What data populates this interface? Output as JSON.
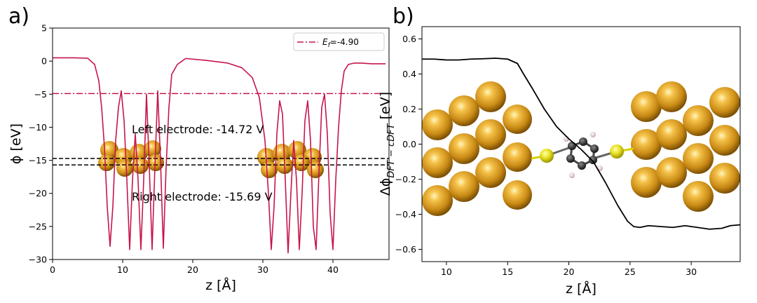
{
  "chart_data": [
    {
      "panel": "a)",
      "type": "line",
      "xlabel": "z [Å]",
      "ylabel": "ϕ [eV]",
      "xlim": [
        0,
        48
      ],
      "ylim": [
        -30,
        5
      ],
      "xticks": [
        "0",
        "10",
        "20",
        "30",
        "40"
      ],
      "yticks": [
        "5",
        "0",
        "−5",
        "−10",
        "−15",
        "−20",
        "−25",
        "−30"
      ],
      "legend": {
        "label": "E_f=-4.90",
        "prefix": "E",
        "sub": "f",
        "suffix": "=-4.90",
        "location": "top-right"
      },
      "fermi_level": -4.9,
      "hlines": [
        -14.72,
        -15.69
      ],
      "annotations": [
        "Left electrode: -14.72 V",
        "Right electrode: -15.69 V"
      ],
      "series": [
        {
          "name": "potential",
          "color": "#c7154b",
          "x": [
            0,
            3,
            5,
            6,
            6.6,
            7.0,
            7.4,
            7.8,
            8.2,
            8.6,
            9.0,
            9.4,
            9.8,
            10.2,
            10.6,
            11.0,
            11.4,
            11.8,
            12.2,
            12.6,
            13.0,
            13.4,
            13.8,
            14.2,
            14.6,
            15.0,
            15.4,
            15.8,
            16.2,
            16.6,
            17.0,
            17.8,
            19,
            22,
            25,
            27,
            28.5,
            29.5,
            30.3,
            30.8,
            31.2,
            31.6,
            32.0,
            32.4,
            32.8,
            33.2,
            33.6,
            34.0,
            34.4,
            34.8,
            35.2,
            35.6,
            36.0,
            36.4,
            36.8,
            37.2,
            37.6,
            38.0,
            38.4,
            38.8,
            39.2,
            39.6,
            40.0,
            40.4,
            40.8,
            41.2,
            41.6,
            42.2,
            43,
            44,
            45.5,
            47.5
          ],
          "y": [
            0.5,
            0.5,
            0.45,
            -0.5,
            -3,
            -7,
            -13,
            -22,
            -28,
            -22,
            -12,
            -7,
            -4.5,
            -9,
            -18,
            -28.5,
            -18,
            -11,
            -18,
            -28.5,
            -18,
            -5,
            -16,
            -28.5,
            -16,
            -4.5,
            -15,
            -28.3,
            -16,
            -7,
            -2,
            -0.5,
            0.4,
            0.1,
            -0.3,
            -1.0,
            -2.5,
            -5.5,
            -12,
            -20,
            -28.5,
            -22,
            -11,
            -6,
            -8,
            -18,
            -29,
            -20,
            -12,
            -18,
            -28.5,
            -20,
            -9,
            -6,
            -12,
            -25,
            -28.5,
            -17,
            -7,
            -5,
            -11,
            -23,
            -28.5,
            -18,
            -10,
            -4.5,
            -1.5,
            -0.5,
            -0.3,
            -0.3,
            -0.4,
            -0.4
          ]
        }
      ]
    },
    {
      "panel": "b)",
      "type": "line",
      "xlabel": "z [Å]",
      "ylabel": "Δϕ",
      "ylabel_sub": "DFT − cDFT",
      "ylabel_unit": " [eV]",
      "xlim": [
        8,
        34
      ],
      "ylim": [
        -0.67,
        0.67
      ],
      "xticks": [
        "10",
        "15",
        "20",
        "25",
        "30"
      ],
      "yticks": [
        "0.6",
        "0.4",
        "0.2",
        "0.0",
        "−0.2",
        "−0.4",
        "−0.6"
      ],
      "series": [
        {
          "name": "potential difference",
          "color": "#000000",
          "x": [
            8,
            9,
            10,
            11,
            12,
            13,
            14,
            15,
            15.8,
            16.3,
            17,
            18,
            19,
            20,
            21,
            22,
            23,
            24,
            24.8,
            25.3,
            25.8,
            26.5,
            27.5,
            28.5,
            29.5,
            30.5,
            31.5,
            32.5,
            33.2,
            34
          ],
          "y": [
            0.485,
            0.485,
            0.48,
            0.48,
            0.485,
            0.487,
            0.49,
            0.485,
            0.46,
            0.4,
            0.32,
            0.2,
            0.1,
            0.03,
            -0.03,
            -0.1,
            -0.22,
            -0.35,
            -0.44,
            -0.47,
            -0.475,
            -0.465,
            -0.47,
            -0.475,
            -0.465,
            -0.475,
            -0.485,
            -0.48,
            -0.465,
            -0.46
          ]
        }
      ]
    }
  ]
}
